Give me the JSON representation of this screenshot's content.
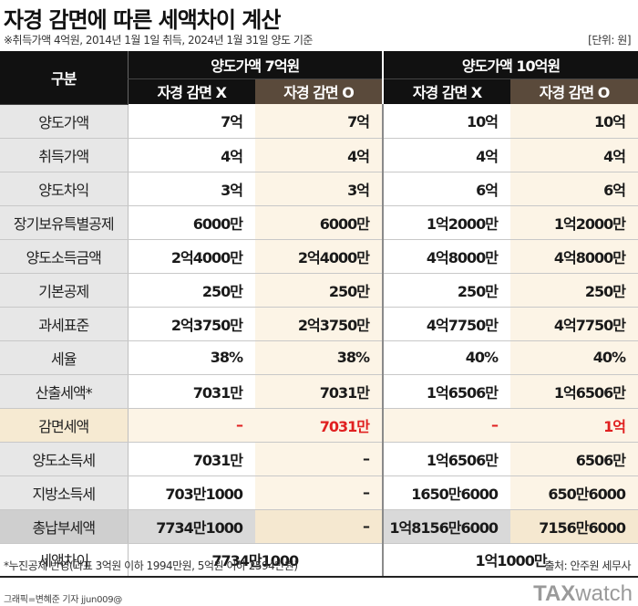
{
  "header": {
    "title": "자경 감면에 따른 세액차이 계산",
    "subtitle": "※취득가액 4억원, 2014년 1월 1일 취득, 2024년 1월 31일 양도 기준",
    "unit": "[단위: 원]"
  },
  "table": {
    "corner_label": "구분",
    "group_a": "양도가액 7억원",
    "group_b": "양도가액 10억원",
    "sub_x": "자경 감면 X",
    "sub_o": "자경 감면 O",
    "rows": [
      {
        "label": "양도가액",
        "a_x": "7억",
        "a_o": "7억",
        "b_x": "10억",
        "b_o": "10억"
      },
      {
        "label": "취득가액",
        "a_x": "4억",
        "a_o": "4억",
        "b_x": "4억",
        "b_o": "4억"
      },
      {
        "label": "양도차익",
        "a_x": "3억",
        "a_o": "3억",
        "b_x": "6억",
        "b_o": "6억"
      },
      {
        "label": "장기보유특별공제",
        "a_x": "6000만",
        "a_o": "6000만",
        "b_x": "1억2000만",
        "b_o": "1억2000만"
      },
      {
        "label": "양도소득금액",
        "a_x": "2억4000만",
        "a_o": "2억4000만",
        "b_x": "4억8000만",
        "b_o": "4억8000만"
      },
      {
        "label": "기본공제",
        "a_x": "250만",
        "a_o": "250만",
        "b_x": "250만",
        "b_o": "250만"
      },
      {
        "label": "과세표준",
        "a_x": "2억3750만",
        "a_o": "2억3750만",
        "b_x": "4억7750만",
        "b_o": "4억7750만"
      },
      {
        "label": "세율",
        "a_x": "38%",
        "a_o": "38%",
        "b_x": "40%",
        "b_o": "40%"
      },
      {
        "label": "산출세액*",
        "a_x": "7031만",
        "a_o": "7031만",
        "b_x": "1억6506만",
        "b_o": "1억6506만"
      },
      {
        "label": "감면세액",
        "a_x": "–",
        "a_o": "7031만",
        "b_x": "–",
        "b_o": "1억"
      },
      {
        "label": "양도소득세",
        "a_x": "7031만",
        "a_o": "–",
        "b_x": "1억6506만",
        "b_o": "6506만"
      },
      {
        "label": "지방소득세",
        "a_x": "703만1000",
        "a_o": "–",
        "b_x": "1650만6000",
        "b_o": "650만6000"
      },
      {
        "label": "총납부세액",
        "a_x": "7734만1000",
        "a_o": "–",
        "b_x": "1억8156만6000",
        "b_o": "7156만6000"
      }
    ],
    "diff_label": "세액차이",
    "diff_a": "7734만1000",
    "diff_b": "1억1000만"
  },
  "footer": {
    "note": "*누진공제 반영(과표 3억원 이하 1994만원, 5억원 이하 2594만원)",
    "source": "출처: 안주원 세무사",
    "credit": "그래픽=변혜준 기자 jjun009@",
    "logo_tax": "TAX",
    "logo_watch": "watch"
  },
  "colors": {
    "header_black": "#111111",
    "header_brown": "#5a4a3b",
    "cream": "#fcf4e6",
    "label_gray": "#e7e7e7",
    "reduction_red": "#e02020"
  }
}
